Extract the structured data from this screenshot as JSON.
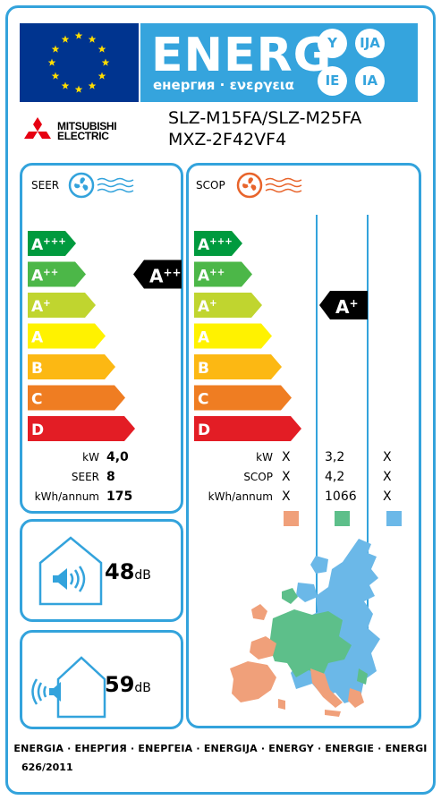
{
  "header": {
    "energy_word": "ENERG",
    "energy_subtitle": "енергия · ενεργεια",
    "lang_suffixes": [
      "Y",
      "IJA",
      "IE",
      "IA"
    ],
    "brand_line1": "MITSUBISHI",
    "brand_line2": "ELECTRIC",
    "model_line1": "SLZ-M15FA/SLZ-M25FA",
    "model_line2": "MXZ-2F42VF4"
  },
  "colors": {
    "border": "#33a3dc",
    "energy_blue": "#35a4dd",
    "eu_blue": "#00348f",
    "eu_star": "#ffdd00",
    "cool_zone": "#f0a07a",
    "avg_zone": "#5dbf8a",
    "warm_zone": "#6bb8e8",
    "class_colors": [
      "#009a3e",
      "#4cb748",
      "#c0d52f",
      "#fff200",
      "#fcb813",
      "#ef7d22",
      "#e31d25"
    ]
  },
  "classes": [
    "A+++",
    "A++",
    "A+",
    "A",
    "B",
    "C",
    "D"
  ],
  "seer": {
    "title": "SEER",
    "icon": "fan-cooling-icon",
    "rating": "A++",
    "rows": [
      {
        "label": "kW",
        "value": "4,0"
      },
      {
        "label": "SEER",
        "value": "8"
      },
      {
        "label": "kWh/annum",
        "value": "175"
      }
    ]
  },
  "scop": {
    "title": "SCOP",
    "icon": "fan-heating-icon",
    "rating": "A+",
    "rows": [
      {
        "label": "kW",
        "values": [
          "X",
          "3,2",
          "X"
        ]
      },
      {
        "label": "SCOP",
        "values": [
          "X",
          "4,2",
          "X"
        ]
      },
      {
        "label": "kWh/annum",
        "values": [
          "X",
          "1066",
          "X"
        ]
      }
    ]
  },
  "noise": {
    "indoor_value": "48",
    "indoor_unit": "dB",
    "outdoor_value": "59",
    "outdoor_unit": "dB"
  },
  "footer": {
    "languages": "ENERGIA · ЕНЕРГИЯ · ΕΝΕΡΓΕΙΑ · ENERGIJA · ENERGY · ENERGIE · ENERGI",
    "regulation": "626/2011"
  }
}
